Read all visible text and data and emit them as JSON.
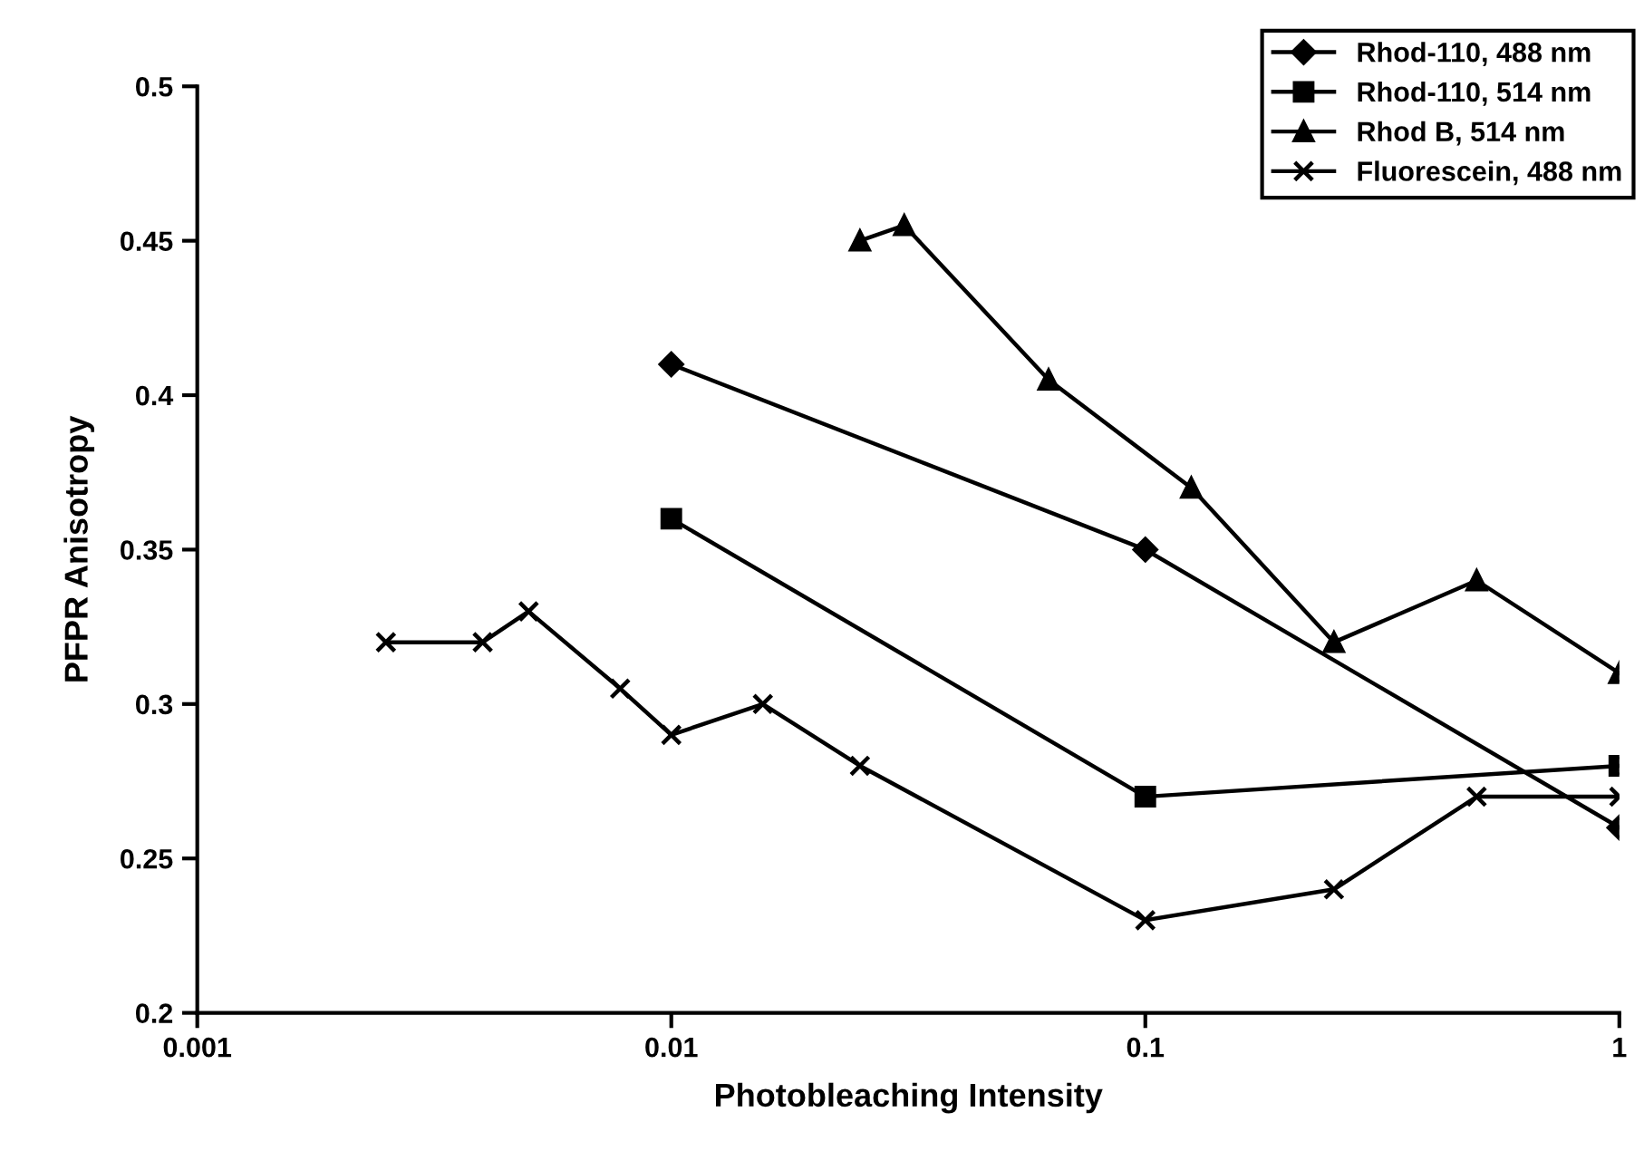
{
  "chart_data": {
    "type": "line",
    "xlabel": "Photobleaching Intensity",
    "ylabel": "PFPR Anisotropy",
    "log": "x",
    "xlim": [
      0.001,
      1
    ],
    "xticks": [
      0.001,
      0.01,
      0.1,
      1
    ],
    "ylim": [
      0.2,
      0.5
    ],
    "yticks": [
      0.2,
      0.25,
      0.3,
      0.35,
      0.4,
      0.45,
      0.5
    ],
    "grid": false,
    "legend": "top right",
    "line_style": "solid",
    "series": [
      {
        "name": "Rhod-110, 488 nm",
        "color": "#000000",
        "marker": "diamond",
        "x": [
          0.01,
          0.1,
          1
        ],
        "values": [
          0.41,
          0.35,
          0.26
        ]
      },
      {
        "name": "Rhod-110, 514 nm",
        "color": "#000000",
        "marker": "square",
        "x": [
          0.01,
          0.1,
          1
        ],
        "values": [
          0.36,
          0.27,
          0.28
        ]
      },
      {
        "name": "Rhod B, 514 nm",
        "color": "#000000",
        "marker": "triangle",
        "x": [
          0.025,
          0.031,
          0.0625,
          0.125,
          0.25,
          0.5,
          1
        ],
        "values": [
          0.45,
          0.455,
          0.405,
          0.37,
          0.32,
          0.34,
          0.31
        ]
      },
      {
        "name": "Fluorescein, 488 nm",
        "color": "#000000",
        "marker": "cross",
        "x": [
          0.0025,
          0.004,
          0.005,
          0.0078,
          0.01,
          0.0156,
          0.025,
          0.1,
          0.25,
          0.5,
          1
        ],
        "values": [
          0.32,
          0.32,
          0.33,
          0.305,
          0.29,
          0.3,
          0.28,
          0.23,
          0.24,
          0.27,
          0.27
        ]
      }
    ]
  }
}
